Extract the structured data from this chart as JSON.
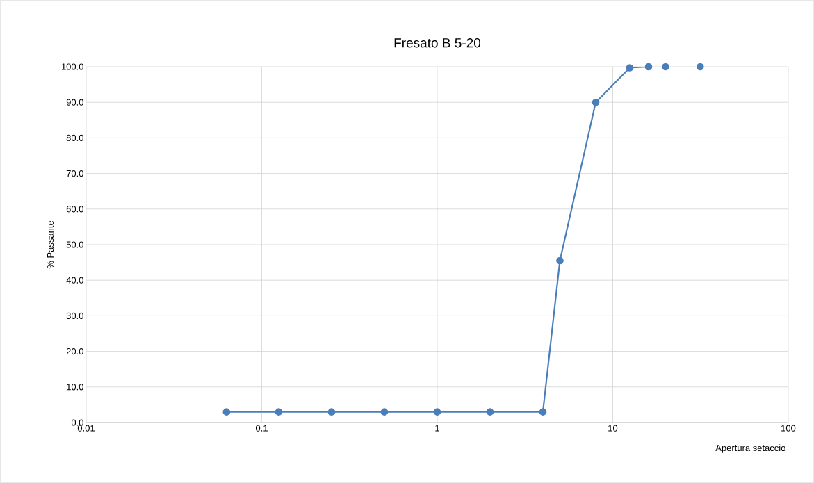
{
  "chart_data": {
    "type": "line",
    "title": "Fresato B 5-20",
    "xlabel": "Apertura setaccio",
    "ylabel": "% Passante",
    "log": "x",
    "x": [
      0.063,
      0.125,
      0.25,
      0.5,
      1,
      2,
      4,
      5,
      8,
      12.5,
      16,
      20,
      31.5
    ],
    "series": [
      {
        "color": "#4a7ebb",
        "values": [
          3.0,
          3.0,
          3.0,
          3.0,
          3.0,
          3.0,
          3.0,
          45.5,
          90.0,
          99.7,
          100.0,
          100.0,
          100.0
        ]
      }
    ],
    "xlim": [
      0.01,
      100
    ],
    "xticks": [
      0.01,
      0.1,
      1,
      10,
      100
    ],
    "ylim": [
      0,
      100
    ],
    "yticks": [
      {
        "value": 0,
        "label": "0.0"
      },
      {
        "value": 10,
        "label": "10.0"
      },
      {
        "value": 20,
        "label": "20.0"
      },
      {
        "value": 30,
        "label": "30.0"
      },
      {
        "value": 40,
        "label": "40.0"
      },
      {
        "value": 50,
        "label": "50.0"
      },
      {
        "value": 60,
        "label": "60.0"
      },
      {
        "value": 70,
        "label": "70.0"
      },
      {
        "value": 80,
        "label": "80.0"
      },
      {
        "value": 90,
        "label": "90.0"
      },
      {
        "value": 100,
        "label": "100.0"
      }
    ],
    "grid": true,
    "legend": false,
    "marker": "circle",
    "line_style": "solid"
  }
}
